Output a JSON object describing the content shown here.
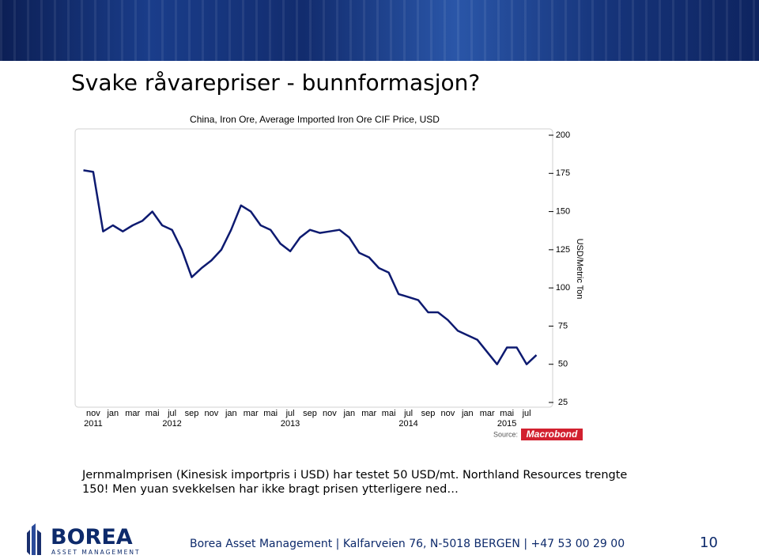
{
  "header": {
    "title": "Svake råvarepriser - bunnformasjon?"
  },
  "chart_data": {
    "type": "line",
    "title": "China, Iron Ore, Average Imported Iron Ore CIF Price, USD",
    "y_label": "USD/Metric Ton",
    "source_label": "Source:",
    "source": "Macrobond",
    "color": "#0d1a70",
    "x": [
      "2011-10",
      "2011-11",
      "2011-12",
      "2012-01",
      "2012-02",
      "2012-03",
      "2012-04",
      "2012-05",
      "2012-06",
      "2012-07",
      "2012-08",
      "2012-09",
      "2012-10",
      "2012-11",
      "2012-12",
      "2013-01",
      "2013-02",
      "2013-03",
      "2013-04",
      "2013-05",
      "2013-06",
      "2013-07",
      "2013-08",
      "2013-09",
      "2013-10",
      "2013-11",
      "2013-12",
      "2014-01",
      "2014-02",
      "2014-03",
      "2014-04",
      "2014-05",
      "2014-06",
      "2014-07",
      "2014-08",
      "2014-09",
      "2014-10",
      "2014-11",
      "2014-12",
      "2015-01",
      "2015-02",
      "2015-03",
      "2015-04",
      "2015-05",
      "2015-06",
      "2015-07",
      "2015-08"
    ],
    "values": [
      177,
      176,
      137,
      141,
      137,
      141,
      144,
      150,
      141,
      138,
      125,
      107,
      113,
      118,
      125,
      138,
      154,
      150,
      141,
      138,
      129,
      124,
      133,
      138,
      136,
      137,
      138,
      133,
      123,
      120,
      113,
      110,
      96,
      94,
      92,
      84,
      84,
      79,
      72,
      69,
      66,
      58,
      50,
      61,
      61,
      50,
      56
    ],
    "xlim": [
      "2011-09",
      "2015-09"
    ],
    "xticks": [
      {
        "value": "2011-11",
        "label": "nov"
      },
      {
        "value": "2012-01",
        "label": "jan"
      },
      {
        "value": "2012-03",
        "label": "mar"
      },
      {
        "value": "2012-05",
        "label": "mai"
      },
      {
        "value": "2012-07",
        "label": "jul"
      },
      {
        "value": "2012-09",
        "label": "sep"
      },
      {
        "value": "2012-11",
        "label": "nov"
      },
      {
        "value": "2013-01",
        "label": "jan"
      },
      {
        "value": "2013-03",
        "label": "mar"
      },
      {
        "value": "2013-05",
        "label": "mai"
      },
      {
        "value": "2013-07",
        "label": "jul"
      },
      {
        "value": "2013-09",
        "label": "sep"
      },
      {
        "value": "2013-11",
        "label": "nov"
      },
      {
        "value": "2014-01",
        "label": "jan"
      },
      {
        "value": "2014-03",
        "label": "mar"
      },
      {
        "value": "2014-05",
        "label": "mai"
      },
      {
        "value": "2014-07",
        "label": "jul"
      },
      {
        "value": "2014-09",
        "label": "sep"
      },
      {
        "value": "2014-11",
        "label": "nov"
      },
      {
        "value": "2015-01",
        "label": "jan"
      },
      {
        "value": "2015-03",
        "label": "mar"
      },
      {
        "value": "2015-05",
        "label": "mai"
      },
      {
        "value": "2015-07",
        "label": "jul"
      }
    ],
    "year_ticks": [
      {
        "value": "2011-11",
        "label": "2011"
      },
      {
        "value": "2012-07",
        "label": "2012"
      },
      {
        "value": "2013-07",
        "label": "2013"
      },
      {
        "value": "2014-07",
        "label": "2014"
      },
      {
        "value": "2015-05",
        "label": "2015"
      }
    ],
    "ylim": [
      25,
      200
    ],
    "yticks": [
      25,
      50,
      75,
      100,
      125,
      150,
      175,
      200
    ],
    "y_axis_side": "right",
    "grid": false
  },
  "body": {
    "lines": [
      "Jernmalmprisen (Kinesisk importpris i USD) har testet 50 USD/mt. Northland Resources trengte",
      "150! Men yuan svekkelsen har ikke bragt prisen ytterligere ned…"
    ]
  },
  "footer": {
    "logo": "BOREA",
    "logo_sub": "ASSET MANAGEMENT",
    "text": "Borea Asset Management | Kalfarveien 76, N-5018 BERGEN | +47 53 00 29 00",
    "page": "10"
  }
}
